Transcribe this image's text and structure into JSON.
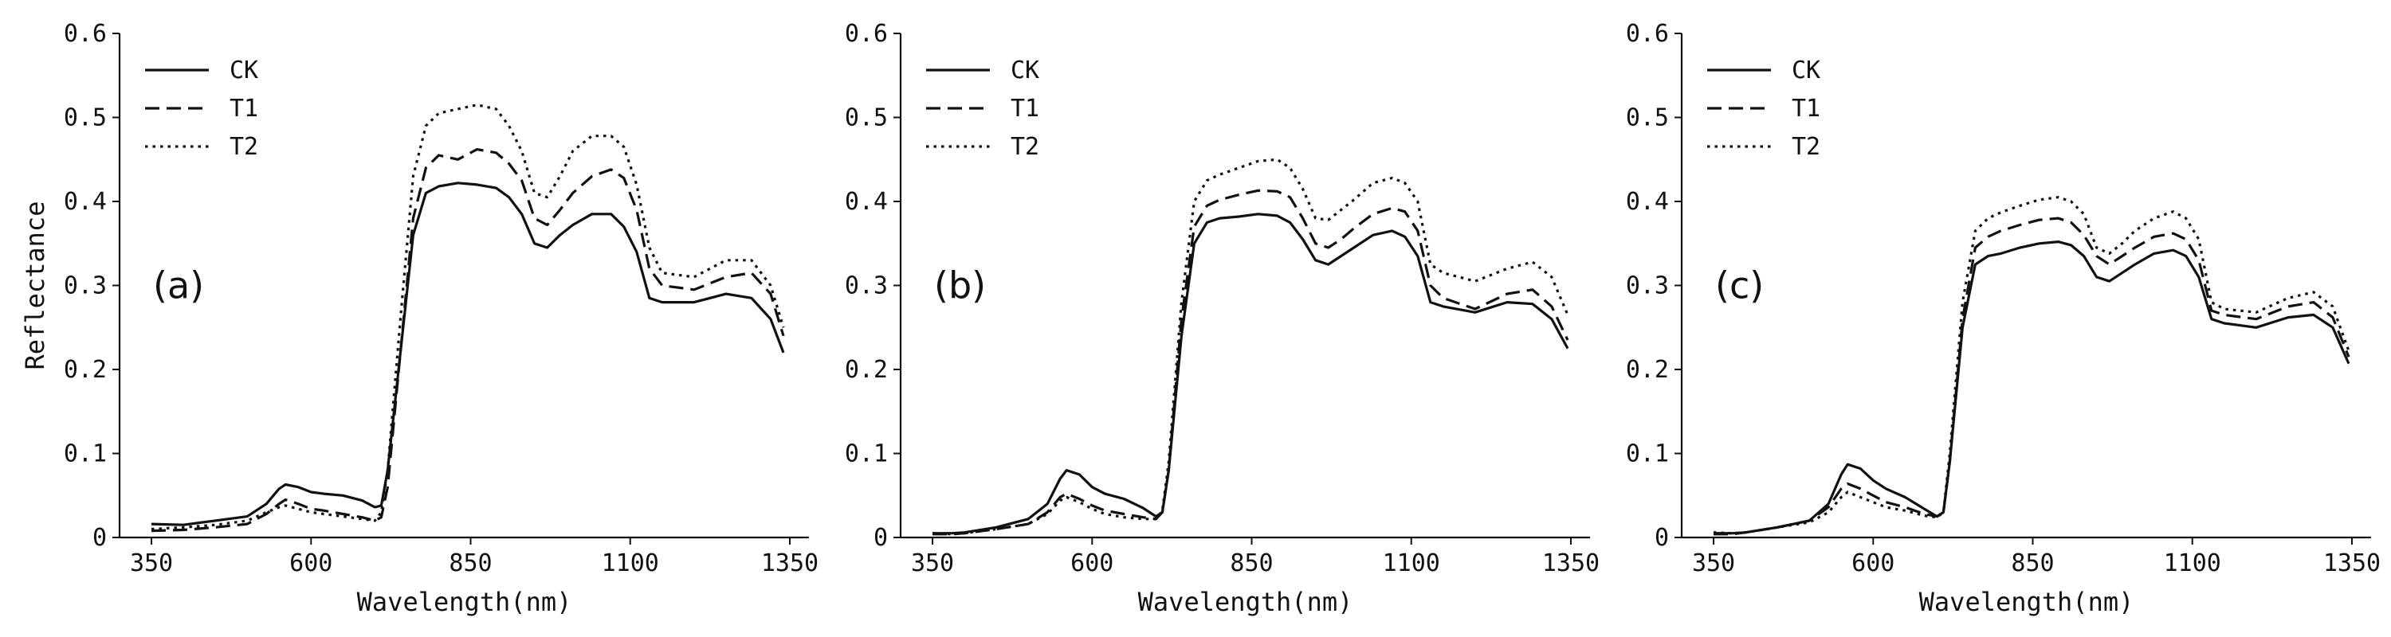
{
  "chart_data": [
    {
      "type": "line",
      "panel_label": "(a)",
      "xlabel": "Wavelength(nm)",
      "ylabel": "Reflectance",
      "xlim": [
        300,
        1380
      ],
      "ylim": [
        0,
        0.6
      ],
      "xticks": [
        350,
        600,
        850,
        1100,
        1350
      ],
      "yticks": [
        0,
        0.1,
        0.2,
        0.3,
        0.4,
        0.5,
        0.6
      ],
      "ytick_labels": [
        "0",
        "0.1",
        "0.2",
        "0.3",
        "0.4",
        "0.5",
        "0.6"
      ],
      "legend_position": "top-left",
      "grid": false,
      "series": [
        {
          "name": "CK",
          "style": "solid",
          "x": [
            350,
            400,
            450,
            500,
            530,
            550,
            560,
            580,
            600,
            620,
            650,
            680,
            700,
            710,
            720,
            740,
            760,
            780,
            800,
            830,
            860,
            890,
            910,
            930,
            950,
            970,
            990,
            1010,
            1040,
            1070,
            1090,
            1110,
            1130,
            1150,
            1200,
            1250,
            1290,
            1320,
            1340
          ],
          "y": [
            0.016,
            0.015,
            0.02,
            0.025,
            0.04,
            0.058,
            0.063,
            0.06,
            0.054,
            0.052,
            0.05,
            0.044,
            0.036,
            0.038,
            0.08,
            0.22,
            0.36,
            0.41,
            0.418,
            0.422,
            0.42,
            0.416,
            0.405,
            0.385,
            0.35,
            0.345,
            0.36,
            0.372,
            0.385,
            0.385,
            0.37,
            0.34,
            0.285,
            0.28,
            0.28,
            0.29,
            0.285,
            0.26,
            0.22
          ]
        },
        {
          "name": "T1",
          "style": "dashed",
          "x": [
            350,
            400,
            450,
            500,
            530,
            550,
            560,
            580,
            600,
            620,
            650,
            680,
            700,
            710,
            720,
            740,
            760,
            780,
            800,
            830,
            860,
            890,
            910,
            930,
            950,
            970,
            990,
            1010,
            1040,
            1070,
            1090,
            1110,
            1130,
            1150,
            1200,
            1250,
            1290,
            1320,
            1340
          ],
          "y": [
            0.008,
            0.009,
            0.012,
            0.016,
            0.028,
            0.04,
            0.045,
            0.04,
            0.034,
            0.032,
            0.028,
            0.024,
            0.02,
            0.024,
            0.06,
            0.22,
            0.38,
            0.44,
            0.455,
            0.45,
            0.462,
            0.458,
            0.445,
            0.425,
            0.38,
            0.372,
            0.39,
            0.41,
            0.43,
            0.438,
            0.428,
            0.39,
            0.32,
            0.3,
            0.295,
            0.31,
            0.315,
            0.29,
            0.24
          ]
        },
        {
          "name": "T2",
          "style": "dotted",
          "x": [
            350,
            400,
            450,
            500,
            530,
            550,
            560,
            580,
            600,
            620,
            650,
            680,
            700,
            710,
            720,
            740,
            760,
            780,
            800,
            830,
            860,
            890,
            910,
            930,
            950,
            970,
            990,
            1010,
            1040,
            1070,
            1090,
            1110,
            1130,
            1150,
            1200,
            1250,
            1290,
            1320,
            1340
          ],
          "y": [
            0.01,
            0.012,
            0.015,
            0.02,
            0.03,
            0.036,
            0.038,
            0.034,
            0.03,
            0.028,
            0.025,
            0.022,
            0.02,
            0.03,
            0.08,
            0.26,
            0.43,
            0.49,
            0.505,
            0.51,
            0.515,
            0.51,
            0.49,
            0.46,
            0.41,
            0.405,
            0.43,
            0.46,
            0.478,
            0.478,
            0.465,
            0.42,
            0.345,
            0.315,
            0.31,
            0.33,
            0.33,
            0.3,
            0.25
          ]
        }
      ]
    },
    {
      "type": "line",
      "panel_label": "(b)",
      "xlabel": "Wavelength(nm)",
      "ylabel": "",
      "xlim": [
        300,
        1380
      ],
      "ylim": [
        0,
        0.6
      ],
      "xticks": [
        350,
        600,
        850,
        1100,
        1350
      ],
      "yticks": [
        0,
        0.1,
        0.2,
        0.3,
        0.4,
        0.5,
        0.6
      ],
      "ytick_labels": [
        "0",
        "0.1",
        "0.2",
        "0.3",
        "0.4",
        "0.5",
        "0.6"
      ],
      "legend_position": "top-left",
      "grid": false,
      "series": [
        {
          "name": "CK",
          "style": "solid",
          "x": [
            350,
            380,
            400,
            450,
            500,
            530,
            550,
            560,
            580,
            600,
            620,
            650,
            680,
            700,
            710,
            720,
            740,
            760,
            780,
            800,
            830,
            860,
            890,
            910,
            930,
            950,
            970,
            990,
            1010,
            1040,
            1070,
            1090,
            1110,
            1130,
            1150,
            1200,
            1250,
            1290,
            1320,
            1345
          ],
          "y": [
            0.005,
            0.005,
            0.006,
            0.012,
            0.022,
            0.04,
            0.07,
            0.08,
            0.075,
            0.06,
            0.052,
            0.046,
            0.035,
            0.025,
            0.03,
            0.08,
            0.24,
            0.35,
            0.375,
            0.38,
            0.382,
            0.385,
            0.383,
            0.375,
            0.355,
            0.33,
            0.325,
            0.335,
            0.345,
            0.36,
            0.365,
            0.358,
            0.335,
            0.28,
            0.275,
            0.268,
            0.28,
            0.278,
            0.26,
            0.225
          ]
        },
        {
          "name": "T1",
          "style": "dashed",
          "x": [
            350,
            380,
            400,
            450,
            500,
            530,
            550,
            560,
            580,
            600,
            620,
            650,
            680,
            700,
            710,
            720,
            740,
            760,
            780,
            800,
            830,
            860,
            890,
            910,
            930,
            950,
            970,
            990,
            1010,
            1040,
            1070,
            1090,
            1110,
            1130,
            1150,
            1200,
            1250,
            1290,
            1320,
            1345
          ],
          "y": [
            0.004,
            0.004,
            0.005,
            0.01,
            0.016,
            0.03,
            0.048,
            0.052,
            0.046,
            0.038,
            0.032,
            0.028,
            0.024,
            0.022,
            0.03,
            0.08,
            0.26,
            0.37,
            0.395,
            0.402,
            0.408,
            0.413,
            0.412,
            0.405,
            0.38,
            0.35,
            0.345,
            0.355,
            0.368,
            0.385,
            0.392,
            0.388,
            0.365,
            0.3,
            0.285,
            0.272,
            0.29,
            0.295,
            0.275,
            0.235
          ]
        },
        {
          "name": "T2",
          "style": "dotted",
          "x": [
            350,
            380,
            400,
            450,
            500,
            530,
            550,
            560,
            580,
            600,
            620,
            650,
            680,
            700,
            710,
            720,
            740,
            760,
            780,
            800,
            830,
            860,
            890,
            910,
            930,
            950,
            970,
            990,
            1010,
            1040,
            1070,
            1090,
            1110,
            1130,
            1150,
            1200,
            1250,
            1290,
            1320,
            1345
          ],
          "y": [
            0.005,
            0.004,
            0.005,
            0.01,
            0.016,
            0.028,
            0.044,
            0.048,
            0.042,
            0.034,
            0.028,
            0.024,
            0.022,
            0.022,
            0.032,
            0.09,
            0.28,
            0.4,
            0.425,
            0.432,
            0.44,
            0.448,
            0.45,
            0.44,
            0.415,
            0.38,
            0.378,
            0.39,
            0.402,
            0.422,
            0.428,
            0.422,
            0.4,
            0.325,
            0.315,
            0.305,
            0.32,
            0.328,
            0.31,
            0.265
          ]
        }
      ]
    },
    {
      "type": "line",
      "panel_label": "(c)",
      "xlabel": "Wavelength(nm)",
      "ylabel": "",
      "xlim": [
        300,
        1380
      ],
      "ylim": [
        0,
        0.6
      ],
      "xticks": [
        350,
        600,
        850,
        1100,
        1350
      ],
      "yticks": [
        0,
        0.1,
        0.2,
        0.3,
        0.4,
        0.5,
        0.6
      ],
      "ytick_labels": [
        "0",
        "0.1",
        "0.2",
        "0.3",
        "0.4",
        "0.5",
        "0.6"
      ],
      "legend_position": "top-left",
      "grid": false,
      "series": [
        {
          "name": "CK",
          "style": "solid",
          "x": [
            350,
            380,
            400,
            450,
            500,
            530,
            550,
            560,
            580,
            600,
            620,
            650,
            680,
            700,
            710,
            720,
            740,
            760,
            780,
            800,
            830,
            860,
            890,
            910,
            930,
            950,
            970,
            990,
            1010,
            1040,
            1070,
            1090,
            1110,
            1130,
            1150,
            1200,
            1250,
            1290,
            1320,
            1345
          ],
          "y": [
            0.005,
            0.005,
            0.006,
            0.012,
            0.02,
            0.04,
            0.075,
            0.087,
            0.082,
            0.068,
            0.058,
            0.048,
            0.034,
            0.025,
            0.03,
            0.09,
            0.25,
            0.325,
            0.335,
            0.338,
            0.345,
            0.35,
            0.352,
            0.348,
            0.335,
            0.31,
            0.305,
            0.315,
            0.325,
            0.338,
            0.342,
            0.335,
            0.31,
            0.26,
            0.255,
            0.25,
            0.262,
            0.265,
            0.25,
            0.207
          ]
        },
        {
          "name": "T1",
          "style": "dashed",
          "x": [
            350,
            380,
            400,
            450,
            500,
            530,
            550,
            560,
            580,
            600,
            620,
            650,
            680,
            700,
            710,
            720,
            740,
            760,
            780,
            800,
            830,
            860,
            890,
            910,
            930,
            950,
            970,
            990,
            1010,
            1040,
            1070,
            1090,
            1110,
            1130,
            1150,
            1200,
            1250,
            1290,
            1320,
            1345
          ],
          "y": [
            0.004,
            0.004,
            0.006,
            0.012,
            0.02,
            0.036,
            0.058,
            0.064,
            0.058,
            0.05,
            0.042,
            0.036,
            0.028,
            0.025,
            0.03,
            0.09,
            0.26,
            0.345,
            0.358,
            0.365,
            0.372,
            0.378,
            0.38,
            0.375,
            0.36,
            0.335,
            0.325,
            0.335,
            0.345,
            0.358,
            0.362,
            0.355,
            0.33,
            0.27,
            0.265,
            0.26,
            0.275,
            0.28,
            0.262,
            0.215
          ]
        },
        {
          "name": "T2",
          "style": "dotted",
          "x": [
            350,
            380,
            400,
            450,
            500,
            530,
            550,
            560,
            580,
            600,
            620,
            650,
            680,
            700,
            710,
            720,
            740,
            760,
            780,
            800,
            830,
            860,
            890,
            910,
            930,
            950,
            970,
            990,
            1010,
            1040,
            1070,
            1090,
            1110,
            1130,
            1150,
            1200,
            1250,
            1290,
            1320,
            1345
          ],
          "y": [
            0.006,
            0.005,
            0.006,
            0.012,
            0.018,
            0.03,
            0.048,
            0.054,
            0.048,
            0.042,
            0.036,
            0.032,
            0.026,
            0.024,
            0.03,
            0.1,
            0.28,
            0.365,
            0.38,
            0.387,
            0.395,
            0.402,
            0.405,
            0.4,
            0.385,
            0.345,
            0.338,
            0.35,
            0.365,
            0.38,
            0.388,
            0.38,
            0.355,
            0.28,
            0.272,
            0.268,
            0.285,
            0.292,
            0.275,
            0.222
          ]
        }
      ]
    }
  ]
}
